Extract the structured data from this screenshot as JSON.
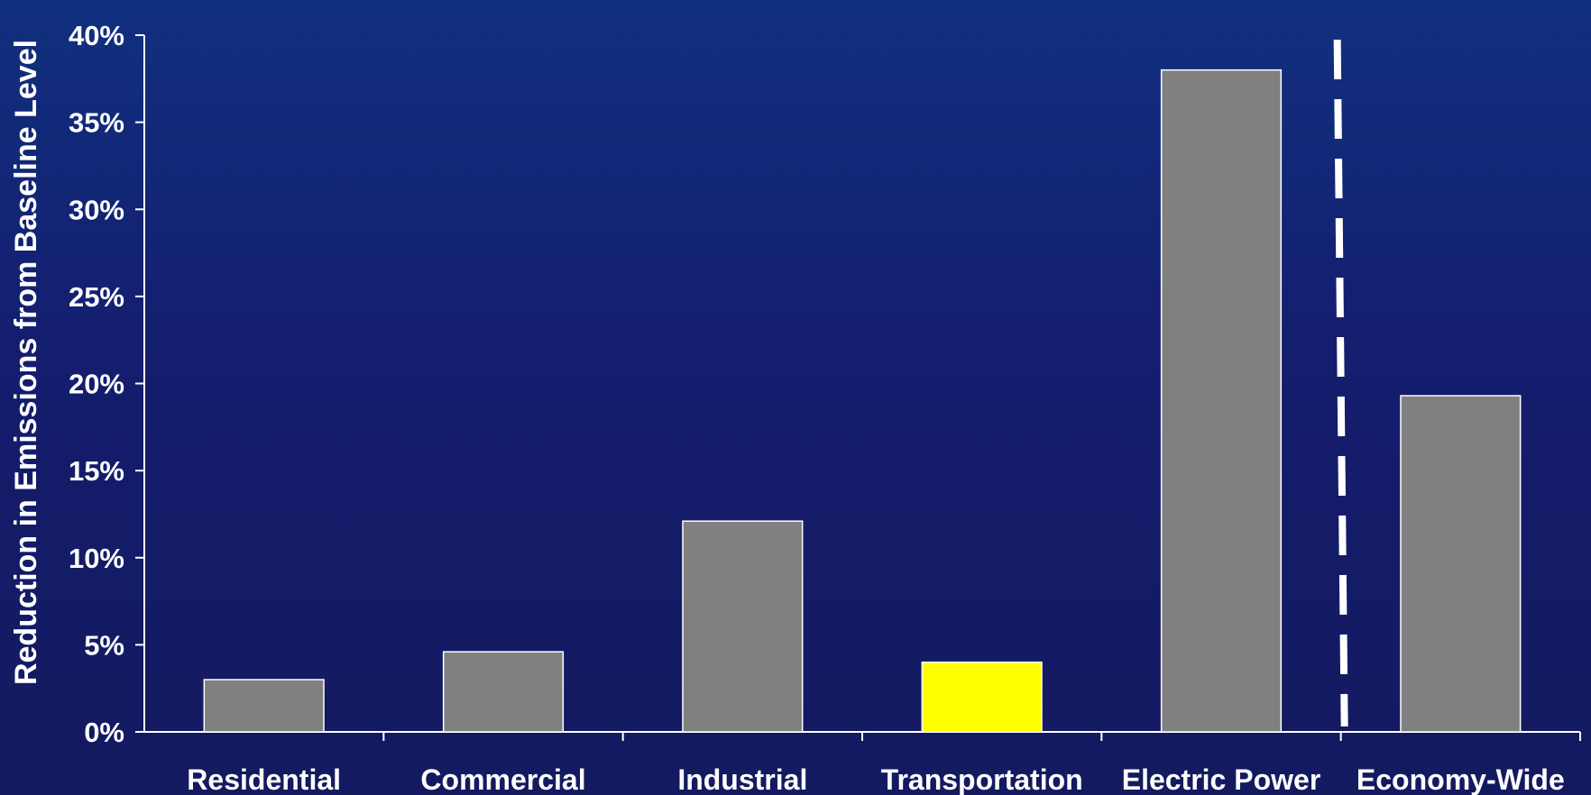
{
  "chart_data": {
    "type": "bar",
    "title": "",
    "xlabel": "",
    "ylabel": "Reduction in Emissions from Baseline Level",
    "categories": [
      "Residential",
      "Commercial",
      "Industrial",
      "Transportation",
      "Electric Power",
      "Economy-Wide"
    ],
    "values": [
      3.0,
      4.6,
      12.1,
      4.0,
      38.0,
      19.3
    ],
    "highlight_category": "Transportation",
    "ylim": [
      0,
      40
    ],
    "yticks": [
      "0%",
      "5%",
      "10%",
      "15%",
      "20%",
      "25%",
      "30%",
      "35%",
      "40%"
    ],
    "grid": false,
    "legend": "none",
    "separator_between": [
      "Electric Power",
      "Economy-Wide"
    ],
    "colors": {
      "bar": "#808080",
      "highlight": "#ffff00",
      "axis": "#ffffff",
      "text": "#ffffff"
    }
  }
}
